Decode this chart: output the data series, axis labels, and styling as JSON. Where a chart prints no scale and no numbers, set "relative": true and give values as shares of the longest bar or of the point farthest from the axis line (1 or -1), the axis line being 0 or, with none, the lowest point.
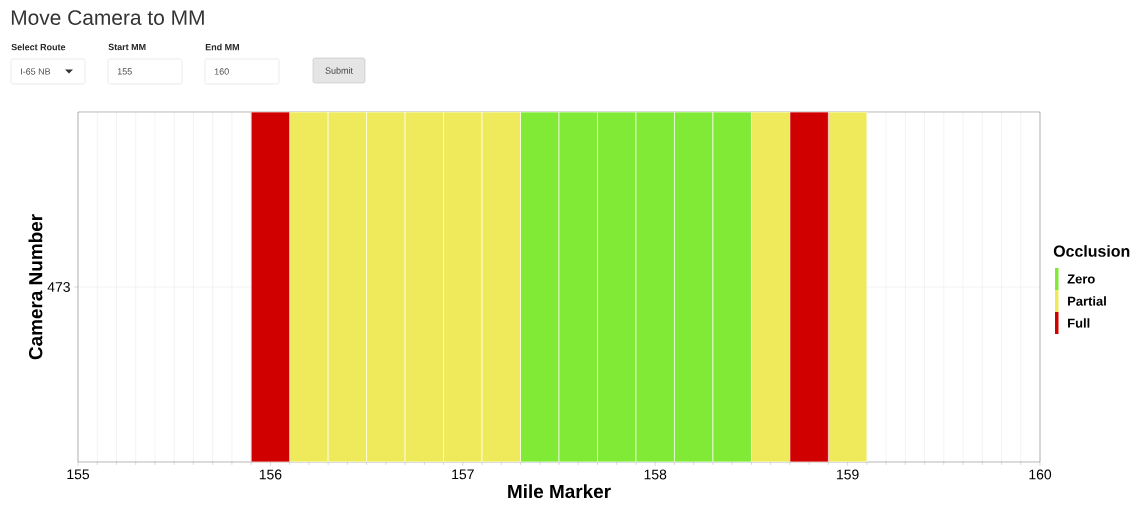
{
  "chart_data": {
    "type": "bar",
    "title": "Move Camera to MM",
    "annotations": [
      "Select Route",
      "I-65 NB",
      "Start MM",
      "155",
      "End MM",
      "160",
      "Submit",
      "473"
    ],
    "xlabel": "Mile Marker",
    "ylabel": "Camera Number",
    "legend_title": "Occlusion",
    "legend": "right",
    "grid": true,
    "relative": true,
    "xlim": [
      155,
      160
    ],
    "xticks": [
      155,
      156,
      157,
      158,
      159,
      160
    ],
    "x": [
      156.0,
      156.2,
      156.4,
      156.6,
      156.8,
      157.0,
      157.2,
      157.4,
      157.6,
      157.8,
      158.0,
      158.2,
      158.4,
      158.6,
      158.8,
      159.0
    ],
    "series": [
      {
        "name": "Zero",
        "color": "#80ea37",
        "values": [
          null,
          null,
          null,
          null,
          null,
          null,
          null,
          1,
          1,
          1,
          1,
          1,
          1,
          null,
          null,
          null
        ]
      },
      {
        "name": "Partial",
        "color": "#eeea5c",
        "values": [
          null,
          1,
          1,
          1,
          1,
          1,
          1,
          null,
          null,
          null,
          null,
          null,
          null,
          1,
          null,
          1
        ]
      },
      {
        "name": "Full",
        "color": "#d10000",
        "values": [
          1,
          null,
          null,
          null,
          null,
          null,
          null,
          null,
          null,
          null,
          null,
          null,
          null,
          null,
          1,
          null
        ]
      }
    ]
  }
}
